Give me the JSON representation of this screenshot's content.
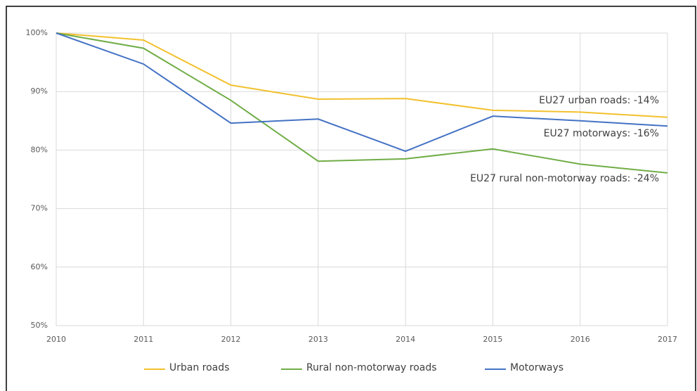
{
  "chart_data": {
    "type": "line",
    "categories": [
      "2010",
      "2011",
      "2012",
      "2013",
      "2014",
      "2015",
      "2016",
      "2017"
    ],
    "series": [
      {
        "name": "Urban roads",
        "color": "#f2c12e",
        "values": [
          100,
          98.8,
          91.1,
          88.7,
          88.8,
          86.8,
          86.5,
          85.6
        ]
      },
      {
        "name": "Rural non-motorway roads",
        "color": "#70ad47",
        "values": [
          100,
          97.4,
          88.5,
          78.1,
          78.5,
          80.2,
          77.6,
          76.1
        ]
      },
      {
        "name": "Motorways",
        "color": "#4472c4",
        "values": [
          100,
          94.7,
          84.6,
          85.3,
          79.8,
          85.8,
          85.0,
          84.1
        ]
      }
    ],
    "annotations": [
      "EU27 urban roads: -14%",
      "EU27 motorways: -16%",
      "EU27 rural non-motorway roads: -24%"
    ],
    "ylim": [
      50,
      100
    ],
    "yticks": [
      {
        "value": 50,
        "label": "50%"
      },
      {
        "value": 60,
        "label": "60%"
      },
      {
        "value": 70,
        "label": "70%"
      },
      {
        "value": 80,
        "label": "80%"
      },
      {
        "value": 90,
        "label": "90%"
      },
      {
        "value": 100,
        "label": "100%"
      }
    ],
    "grid": true,
    "legend": "bottom"
  }
}
